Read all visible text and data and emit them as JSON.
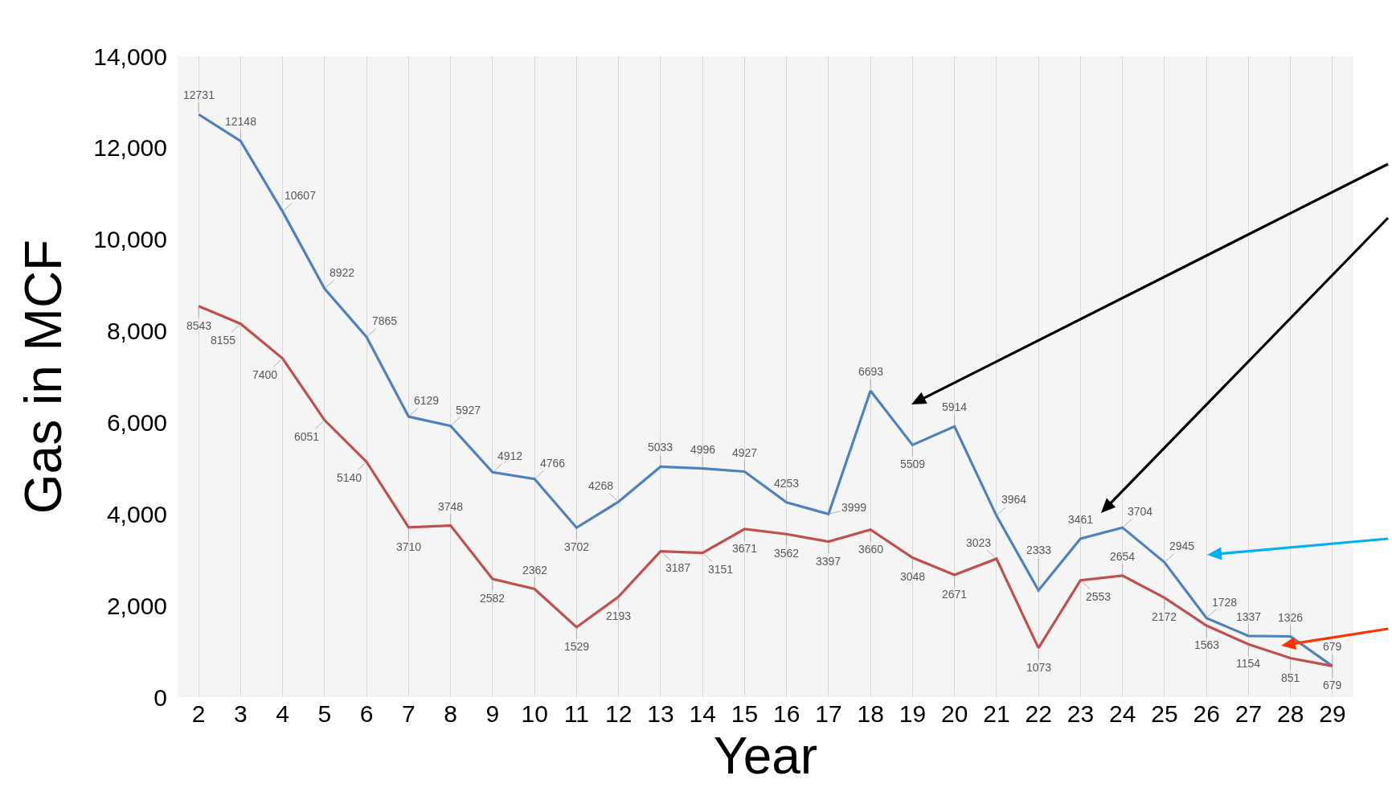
{
  "chart_data": {
    "type": "line",
    "xlabel": "Year",
    "ylabel": "Gas in MCF",
    "x": [
      2,
      3,
      4,
      5,
      6,
      7,
      8,
      9,
      10,
      11,
      12,
      13,
      14,
      15,
      16,
      17,
      18,
      19,
      20,
      21,
      22,
      23,
      24,
      25,
      26,
      27,
      28,
      29
    ],
    "series": [
      {
        "color": "#4f81bd",
        "values": [
          12731,
          12148,
          10607,
          8922,
          7865,
          6129,
          5927,
          4912,
          4766,
          3702,
          4268,
          5033,
          4996,
          4927,
          4253,
          3999,
          6693,
          5509,
          5914,
          3964,
          2333,
          3461,
          3704,
          2945,
          1728,
          1337,
          1326,
          679
        ]
      },
      {
        "color": "#c0504d",
        "values": [
          8543,
          8155,
          7400,
          6051,
          5140,
          3710,
          3748,
          2582,
          2362,
          1529,
          2193,
          3187,
          3151,
          3671,
          3562,
          3397,
          3660,
          3048,
          2671,
          3023,
          1073,
          2553,
          2654,
          2172,
          1563,
          1154,
          851,
          679
        ]
      }
    ],
    "xlim": [
      1.5,
      29.5
    ],
    "xticks": [
      2,
      3,
      4,
      5,
      6,
      7,
      8,
      9,
      10,
      11,
      12,
      13,
      14,
      15,
      16,
      17,
      18,
      19,
      20,
      21,
      22,
      23,
      24,
      25,
      26,
      27,
      28,
      29
    ],
    "ylim": [
      0,
      14000
    ],
    "yticks": [
      0,
      {
        "value": 2000,
        "label": "2,000"
      },
      {
        "value": 4000,
        "label": "4,000"
      },
      {
        "value": 6000,
        "label": "6,000"
      },
      {
        "value": 8000,
        "label": "8,000"
      },
      {
        "value": 10000,
        "label": "10,000"
      },
      {
        "value": 12000,
        "label": "12,000"
      },
      {
        "value": 14000,
        "label": "14,000"
      }
    ],
    "data_labels": true,
    "grid": "x"
  }
}
